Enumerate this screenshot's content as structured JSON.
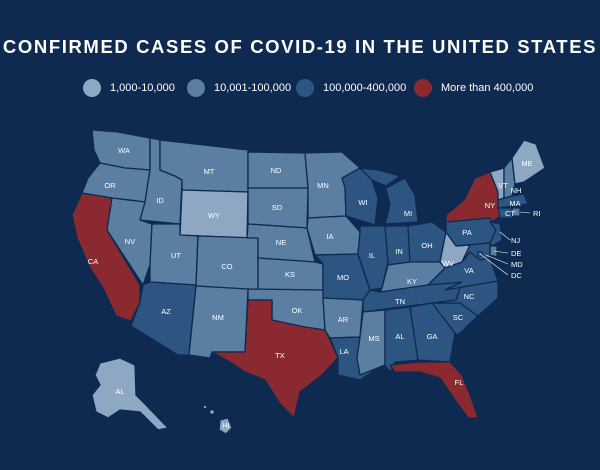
{
  "title": "CONFIRMED CASES OF COVID-19 IN THE UNITED STATES",
  "colors": {
    "background": "#0e2a50",
    "tier1": "#8ea7c2",
    "tier2": "#5b7ea3",
    "tier3": "#2d5582",
    "tier4": "#8a2a30"
  },
  "legend": [
    {
      "label": "1,000-10,000",
      "tier": "tier1"
    },
    {
      "label": "10,001-100,000",
      "tier": "tier2"
    },
    {
      "label": "100,000-400,000",
      "tier": "tier3"
    },
    {
      "label": "More than 400,000",
      "tier": "tier4"
    }
  ],
  "states": [
    {
      "abbr": "WA",
      "tier": "tier2"
    },
    {
      "abbr": "OR",
      "tier": "tier2"
    },
    {
      "abbr": "CA",
      "tier": "tier4"
    },
    {
      "abbr": "ID",
      "tier": "tier2"
    },
    {
      "abbr": "NV",
      "tier": "tier2"
    },
    {
      "abbr": "UT",
      "tier": "tier2"
    },
    {
      "abbr": "AZ",
      "tier": "tier3"
    },
    {
      "abbr": "MT",
      "tier": "tier2"
    },
    {
      "abbr": "WY",
      "tier": "tier1"
    },
    {
      "abbr": "CO",
      "tier": "tier2"
    },
    {
      "abbr": "NM",
      "tier": "tier2"
    },
    {
      "abbr": "ND",
      "tier": "tier2"
    },
    {
      "abbr": "SD",
      "tier": "tier2"
    },
    {
      "abbr": "NE",
      "tier": "tier2"
    },
    {
      "abbr": "KS",
      "tier": "tier2"
    },
    {
      "abbr": "OK",
      "tier": "tier2"
    },
    {
      "abbr": "TX",
      "tier": "tier4"
    },
    {
      "abbr": "MN",
      "tier": "tier2"
    },
    {
      "abbr": "IA",
      "tier": "tier2"
    },
    {
      "abbr": "MO",
      "tier": "tier3"
    },
    {
      "abbr": "AR",
      "tier": "tier2"
    },
    {
      "abbr": "LA",
      "tier": "tier3"
    },
    {
      "abbr": "WI",
      "tier": "tier3"
    },
    {
      "abbr": "IL",
      "tier": "tier3"
    },
    {
      "abbr": "MI",
      "tier": "tier3"
    },
    {
      "abbr": "IN",
      "tier": "tier3"
    },
    {
      "abbr": "OH",
      "tier": "tier3"
    },
    {
      "abbr": "KY",
      "tier": "tier2"
    },
    {
      "abbr": "TN",
      "tier": "tier3"
    },
    {
      "abbr": "MS",
      "tier": "tier2"
    },
    {
      "abbr": "AL",
      "tier": "tier3"
    },
    {
      "abbr": "GA",
      "tier": "tier3"
    },
    {
      "abbr": "FL",
      "tier": "tier4"
    },
    {
      "abbr": "SC",
      "tier": "tier3"
    },
    {
      "abbr": "NC",
      "tier": "tier3"
    },
    {
      "abbr": "VA",
      "tier": "tier3"
    },
    {
      "abbr": "WV",
      "tier": "tier1"
    },
    {
      "abbr": "PA",
      "tier": "tier3"
    },
    {
      "abbr": "NY",
      "tier": "tier4"
    },
    {
      "abbr": "VT",
      "tier": "tier1"
    },
    {
      "abbr": "NH",
      "tier": "tier2"
    },
    {
      "abbr": "ME",
      "tier": "tier1"
    },
    {
      "abbr": "MA",
      "tier": "tier3"
    },
    {
      "abbr": "CT",
      "tier": "tier3"
    },
    {
      "abbr": "RI",
      "tier": "tier2"
    },
    {
      "abbr": "NJ",
      "tier": "tier3"
    },
    {
      "abbr": "DE",
      "tier": "tier2"
    },
    {
      "abbr": "MD",
      "tier": "tier3"
    },
    {
      "abbr": "DC",
      "tier": "tier2"
    },
    {
      "abbr": "AK",
      "label": "AL",
      "tier": "tier1"
    },
    {
      "abbr": "HI",
      "tier": "tier1"
    }
  ]
}
